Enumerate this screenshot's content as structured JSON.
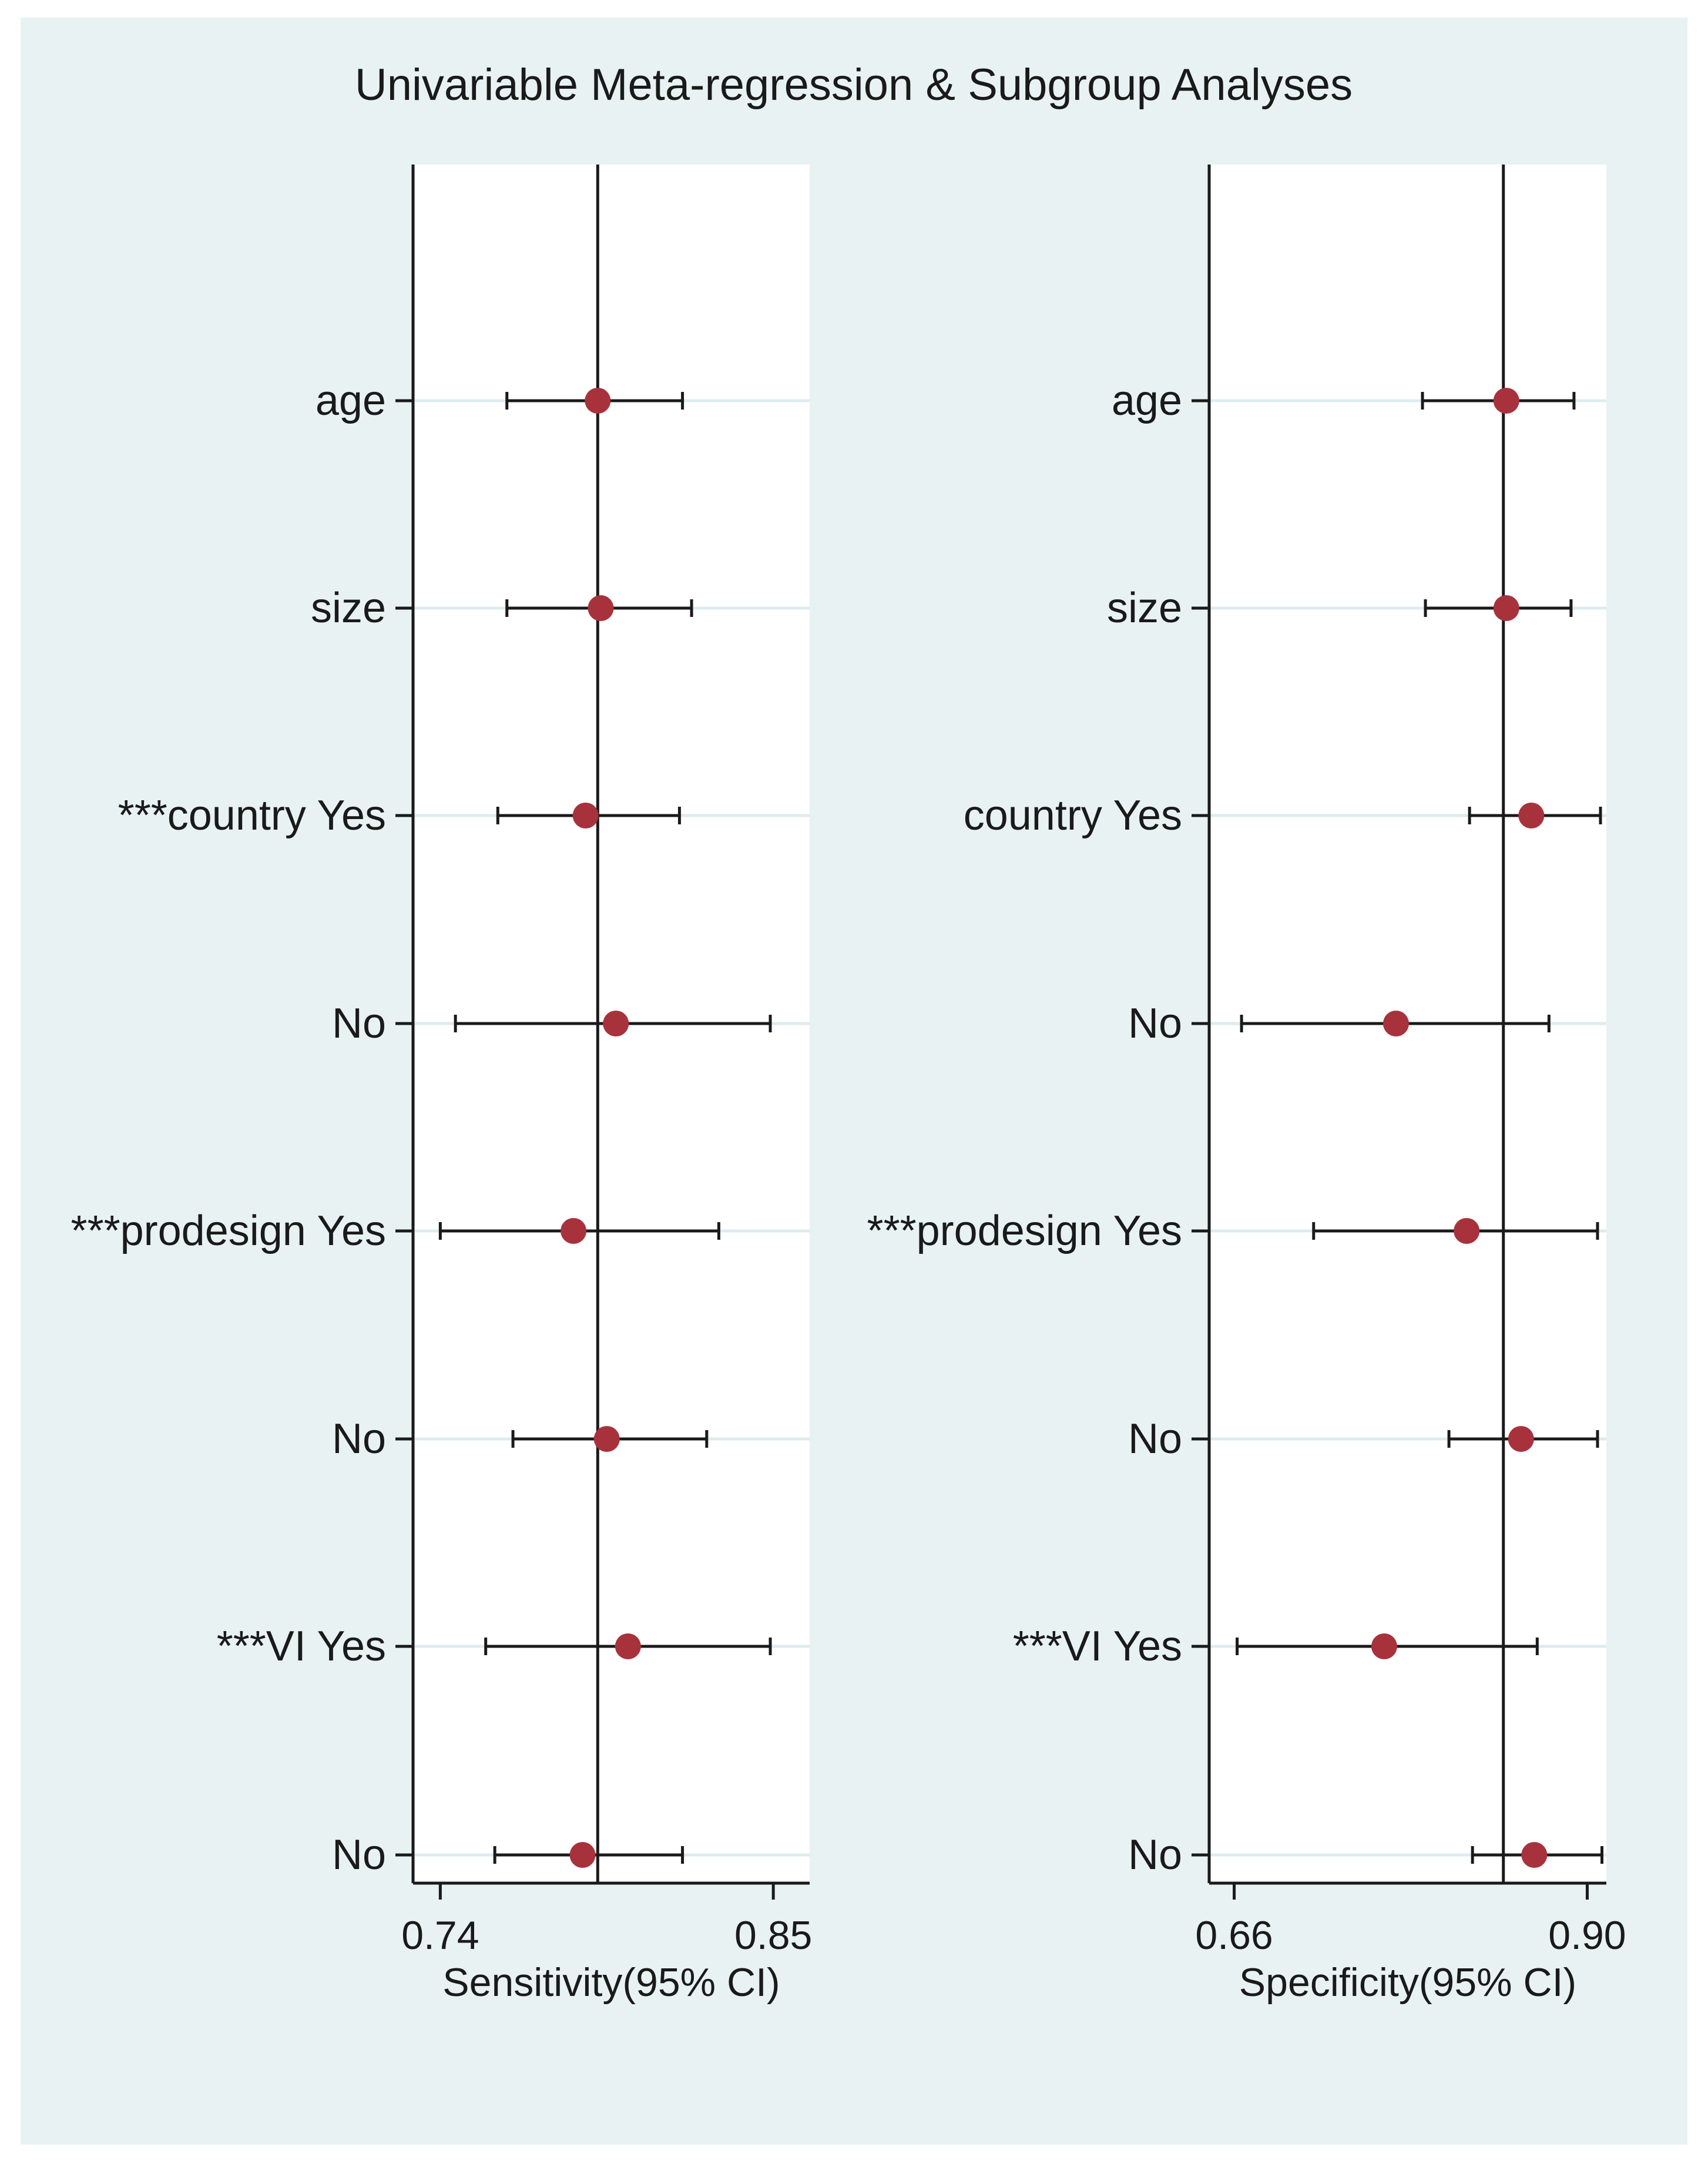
{
  "figure_title": "Univariable Meta-regression & Subgroup Analyses",
  "colors": {
    "background": "#e8f2f2",
    "plot_region": "#ffffff",
    "marker": "#a8323c",
    "line": "#1a1a1a",
    "gridline": "#dcecef"
  },
  "chart_data": [
    {
      "type": "forest",
      "title": "",
      "xlabel": "Sensitivity(95% CI)",
      "ylabel": "",
      "xlim": [
        0.731,
        0.862
      ],
      "xticks": [
        0.74,
        0.85
      ],
      "tick_labels": [
        "0.74",
        "0.85"
      ],
      "reference_line": 0.792,
      "grid": true,
      "categories": [
        "age",
        "size",
        "***country Yes",
        "No",
        "***prodesign Yes",
        "No",
        "***VI Yes",
        "No"
      ],
      "estimate": [
        0.792,
        0.793,
        0.788,
        0.798,
        0.784,
        0.795,
        0.802,
        0.787
      ],
      "ci_low": [
        0.762,
        0.762,
        0.759,
        0.745,
        0.74,
        0.764,
        0.755,
        0.758
      ],
      "ci_high": [
        0.82,
        0.823,
        0.819,
        0.849,
        0.832,
        0.828,
        0.849,
        0.82
      ]
    },
    {
      "type": "forest",
      "title": "",
      "xlabel": "Specificity(95% CI)",
      "ylabel": "",
      "xlim": [
        0.643,
        0.913
      ],
      "xticks": [
        0.66,
        0.9
      ],
      "tick_labels": [
        "0.66",
        "0.90"
      ],
      "reference_line": 0.843,
      "grid": true,
      "categories": [
        "age",
        "size",
        "country Yes",
        "No",
        "***prodesign Yes",
        "No",
        "***VI Yes",
        "No"
      ],
      "estimate": [
        0.845,
        0.845,
        0.862,
        0.77,
        0.818,
        0.855,
        0.762,
        0.864
      ],
      "ci_low": [
        0.788,
        0.79,
        0.82,
        0.665,
        0.714,
        0.806,
        0.662,
        0.822
      ],
      "ci_high": [
        0.891,
        0.889,
        0.909,
        0.874,
        0.907,
        0.907,
        0.866,
        0.91
      ]
    }
  ]
}
